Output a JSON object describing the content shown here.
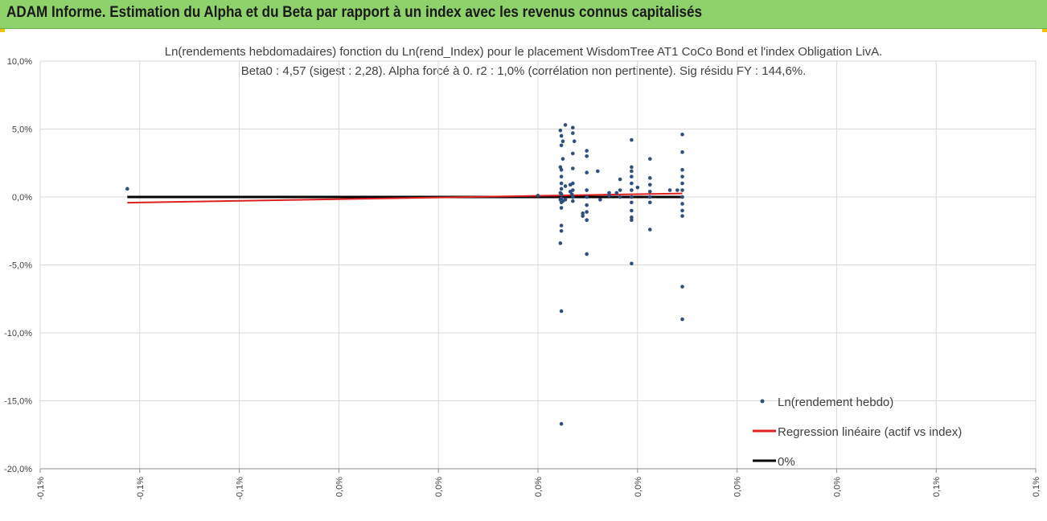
{
  "window": {
    "title": "ADAM Informe. Estimation du Alpha et du Beta par rapport à un index avec les revenus connus capitalisés"
  },
  "colors": {
    "banner": "#8fd16a",
    "points": "#2f4f7f",
    "regression": "#e02020",
    "zero": "#000000",
    "grid": "#d9d9d9"
  },
  "chart_data": {
    "type": "scatter",
    "title_line1": "Ln(rendements hebdomadaires) fonction du Ln(rend_Index) pour le placement WisdomTree AT1 CoCo Bond  et l'index Obligation LivA.",
    "title_line2": "Beta0 : 4,57  (sigest : 2,28).  Alpha forcé à 0. r2 : 1,0% (corrélation non pertinente). Sig résidu FY : 144,6%.",
    "ylim": [
      -20,
      10
    ],
    "yticks": [
      "10,0%",
      "5,0%",
      "0,0%",
      "-5,0%",
      "-10,0%",
      "-15,0%",
      "-20,0%"
    ],
    "xlim": [
      -0.1,
      0.1
    ],
    "xticks": [
      "-0,1%",
      "-0,1%",
      "-0,1%",
      "0,0%",
      "0,0%",
      "0,0%",
      "0,0%",
      "0,0%",
      "0,0%",
      "0,1%",
      "0,1%"
    ],
    "grid": true,
    "legend_position": "bottom-right",
    "series": [
      {
        "name": "Ln(rendement hebdo)",
        "kind": "scatter",
        "points": [
          [
            -0.0825,
            0.6
          ],
          [
            0,
            0.1
          ],
          [
            0.0045,
            4.9
          ],
          [
            0.0045,
            2.2
          ],
          [
            0.0045,
            0.3
          ],
          [
            0.0045,
            -0.2
          ],
          [
            0.0045,
            -3.4
          ],
          [
            0.0047,
            4.5
          ],
          [
            0.0047,
            3.8
          ],
          [
            0.0047,
            2.0
          ],
          [
            0.0047,
            1.5
          ],
          [
            0.0047,
            1.0
          ],
          [
            0.0047,
            0.6
          ],
          [
            0.0047,
            0.2
          ],
          [
            0.0047,
            -0.1
          ],
          [
            0.0047,
            -0.4
          ],
          [
            0.0047,
            -0.8
          ],
          [
            0.0047,
            -2.1
          ],
          [
            0.0047,
            -2.5
          ],
          [
            0.0047,
            -8.4
          ],
          [
            0.0047,
            -16.7
          ],
          [
            0.005,
            4.1
          ],
          [
            0.005,
            2.8
          ],
          [
            0.005,
            -0.3
          ],
          [
            0.0055,
            5.3
          ],
          [
            0.0055,
            0.8
          ],
          [
            0.0055,
            -0.2
          ],
          [
            0.0065,
            0.9
          ],
          [
            0.0065,
            0.4
          ],
          [
            0.0068,
            0.2
          ],
          [
            0.007,
            5.1
          ],
          [
            0.007,
            4.7
          ],
          [
            0.007,
            3.2
          ],
          [
            0.007,
            2.1
          ],
          [
            0.007,
            1.0
          ],
          [
            0.007,
            0.5
          ],
          [
            0.007,
            0.0
          ],
          [
            0.007,
            -0.3
          ],
          [
            0.0073,
            4.1
          ],
          [
            0.009,
            -1.2
          ],
          [
            0.009,
            -1.4
          ],
          [
            0.0098,
            3.4
          ],
          [
            0.0098,
            3.0
          ],
          [
            0.0098,
            1.8
          ],
          [
            0.0098,
            0.5
          ],
          [
            0.0098,
            0.0
          ],
          [
            0.0098,
            -0.6
          ],
          [
            0.0098,
            -1.1
          ],
          [
            0.0098,
            -1.7
          ],
          [
            0.0098,
            -4.2
          ],
          [
            0.012,
            1.9
          ],
          [
            0.0125,
            -0.2
          ],
          [
            0.0143,
            0.3
          ],
          [
            0.0143,
            0.1
          ],
          [
            0.0158,
            0.3
          ],
          [
            0.0165,
            1.3
          ],
          [
            0.0165,
            0.5
          ],
          [
            0.0165,
            0.0
          ],
          [
            0.0188,
            4.2
          ],
          [
            0.0188,
            2.2
          ],
          [
            0.0188,
            1.9
          ],
          [
            0.0188,
            1.5
          ],
          [
            0.0188,
            1.0
          ],
          [
            0.0188,
            0.5
          ],
          [
            0.0188,
            0.0
          ],
          [
            0.0188,
            -0.4
          ],
          [
            0.0188,
            -1.0
          ],
          [
            0.0188,
            -1.5
          ],
          [
            0.0188,
            -1.7
          ],
          [
            0.0188,
            -4.9
          ],
          [
            0.02,
            0.7
          ],
          [
            0.0225,
            2.8
          ],
          [
            0.0225,
            1.4
          ],
          [
            0.0225,
            0.9
          ],
          [
            0.0225,
            0.4
          ],
          [
            0.0225,
            0.0
          ],
          [
            0.0225,
            -0.4
          ],
          [
            0.0225,
            -2.4
          ],
          [
            0.0265,
            0.5
          ],
          [
            0.028,
            0.5
          ],
          [
            0.029,
            4.6
          ],
          [
            0.029,
            3.3
          ],
          [
            0.029,
            2.0
          ],
          [
            0.029,
            1.5
          ],
          [
            0.029,
            1.0
          ],
          [
            0.029,
            0.5
          ],
          [
            0.029,
            0.0
          ],
          [
            0.029,
            -0.5
          ],
          [
            0.029,
            -1.0
          ],
          [
            0.029,
            -1.4
          ],
          [
            0.029,
            -6.6
          ],
          [
            0.029,
            -9.0
          ]
        ]
      },
      {
        "name": "Regression linéaire (actif vs index)",
        "kind": "line",
        "points": [
          [
            -0.0825,
            -0.42
          ],
          [
            0.029,
            0.26
          ]
        ]
      },
      {
        "name": "0%",
        "kind": "line",
        "points": [
          [
            -0.0825,
            0
          ],
          [
            0.029,
            0
          ]
        ]
      }
    ]
  }
}
